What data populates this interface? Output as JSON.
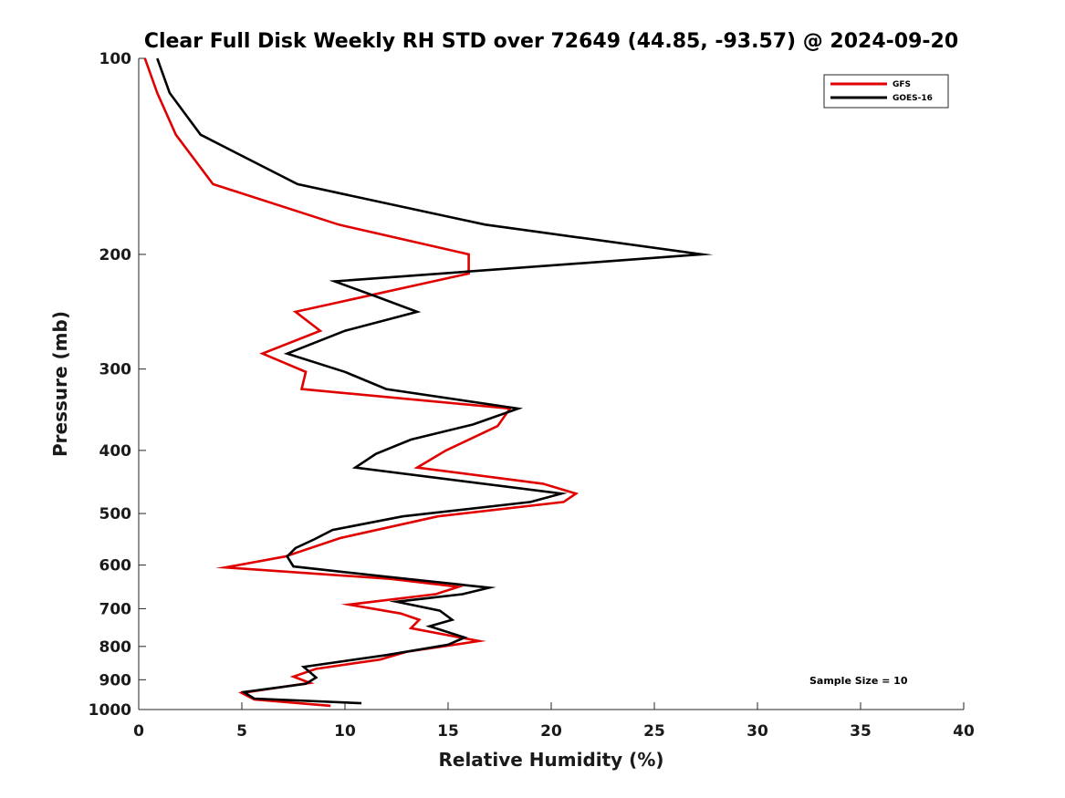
{
  "chart_data": {
    "type": "line",
    "title": "Clear Full Disk Weekly RH STD over 72649 (44.85, -93.57) @ 2024-09-20",
    "xlabel": "Relative Humidity (%)",
    "ylabel": "Pressure (mb)",
    "xlim": [
      0,
      40
    ],
    "ylim": [
      1000,
      100
    ],
    "yscale": "log-reversed",
    "x_ticks": [
      "0",
      "5",
      "10",
      "15",
      "20",
      "25",
      "30",
      "35",
      "40"
    ],
    "y_ticks": [
      {
        "value": 100,
        "label": "100"
      },
      {
        "value": 200,
        "label": "200"
      },
      {
        "value": 300,
        "label": "300"
      },
      {
        "value": 400,
        "label": "400"
      },
      {
        "value": 500,
        "label": "500"
      },
      {
        "value": 600,
        "label": "600"
      },
      {
        "value": 700,
        "label": "700"
      },
      {
        "value": 800,
        "label": "800"
      },
      {
        "value": 900,
        "label": "900"
      },
      {
        "value": 1000,
        "label": "1000"
      }
    ],
    "grid": false,
    "legend_position": "top-right",
    "annotation": "Sample Size = 10",
    "series": [
      {
        "name": "GFS",
        "color": "#e00000",
        "points": [
          {
            "x": 0.3,
            "p": 100
          },
          {
            "x": 0.9,
            "p": 113
          },
          {
            "x": 1.8,
            "p": 131
          },
          {
            "x": 3.6,
            "p": 156
          },
          {
            "x": 9.7,
            "p": 180
          },
          {
            "x": 16.0,
            "p": 200
          },
          {
            "x": 16.0,
            "p": 214
          },
          {
            "x": 7.6,
            "p": 245
          },
          {
            "x": 8.8,
            "p": 262
          },
          {
            "x": 6.0,
            "p": 284
          },
          {
            "x": 8.1,
            "p": 303
          },
          {
            "x": 7.9,
            "p": 322
          },
          {
            "x": 18.0,
            "p": 345
          },
          {
            "x": 17.4,
            "p": 367
          },
          {
            "x": 14.9,
            "p": 400
          },
          {
            "x": 13.5,
            "p": 425
          },
          {
            "x": 19.6,
            "p": 450
          },
          {
            "x": 21.2,
            "p": 466
          },
          {
            "x": 20.6,
            "p": 480
          },
          {
            "x": 14.5,
            "p": 505
          },
          {
            "x": 9.8,
            "p": 545
          },
          {
            "x": 7.1,
            "p": 582
          },
          {
            "x": 4.2,
            "p": 605
          },
          {
            "x": 12.2,
            "p": 630
          },
          {
            "x": 15.5,
            "p": 648
          },
          {
            "x": 14.4,
            "p": 665
          },
          {
            "x": 10.2,
            "p": 690
          },
          {
            "x": 12.7,
            "p": 712
          },
          {
            "x": 13.6,
            "p": 728
          },
          {
            "x": 13.2,
            "p": 750
          },
          {
            "x": 16.5,
            "p": 785
          },
          {
            "x": 13.0,
            "p": 815
          },
          {
            "x": 11.7,
            "p": 838
          },
          {
            "x": 8.6,
            "p": 866
          },
          {
            "x": 7.5,
            "p": 890
          },
          {
            "x": 8.3,
            "p": 910
          },
          {
            "x": 5.0,
            "p": 943
          },
          {
            "x": 5.6,
            "p": 965
          },
          {
            "x": 9.3,
            "p": 987
          }
        ]
      },
      {
        "name": "GOES-16",
        "color": "#000000",
        "points": [
          {
            "x": 0.9,
            "p": 100
          },
          {
            "x": 1.5,
            "p": 113
          },
          {
            "x": 3.0,
            "p": 131
          },
          {
            "x": 7.7,
            "p": 156
          },
          {
            "x": 16.8,
            "p": 180
          },
          {
            "x": 27.3,
            "p": 200
          },
          {
            "x": 9.5,
            "p": 220
          },
          {
            "x": 11.5,
            "p": 232
          },
          {
            "x": 13.5,
            "p": 245
          },
          {
            "x": 10.0,
            "p": 262
          },
          {
            "x": 7.2,
            "p": 284
          },
          {
            "x": 10.0,
            "p": 303
          },
          {
            "x": 12.0,
            "p": 322
          },
          {
            "x": 18.4,
            "p": 345
          },
          {
            "x": 16.2,
            "p": 365
          },
          {
            "x": 13.2,
            "p": 385
          },
          {
            "x": 11.5,
            "p": 405
          },
          {
            "x": 10.5,
            "p": 425
          },
          {
            "x": 20.5,
            "p": 466
          },
          {
            "x": 19.0,
            "p": 480
          },
          {
            "x": 12.8,
            "p": 505
          },
          {
            "x": 9.4,
            "p": 530
          },
          {
            "x": 8.5,
            "p": 548
          },
          {
            "x": 7.6,
            "p": 565
          },
          {
            "x": 7.2,
            "p": 582
          },
          {
            "x": 7.5,
            "p": 603
          },
          {
            "x": 12.0,
            "p": 625
          },
          {
            "x": 17.0,
            "p": 650
          },
          {
            "x": 15.7,
            "p": 665
          },
          {
            "x": 12.5,
            "p": 683
          },
          {
            "x": 14.6,
            "p": 705
          },
          {
            "x": 15.2,
            "p": 728
          },
          {
            "x": 14.1,
            "p": 745
          },
          {
            "x": 15.8,
            "p": 775
          },
          {
            "x": 15.0,
            "p": 795
          },
          {
            "x": 12.0,
            "p": 825
          },
          {
            "x": 8.0,
            "p": 860
          },
          {
            "x": 8.6,
            "p": 893
          },
          {
            "x": 8.1,
            "p": 913
          },
          {
            "x": 5.1,
            "p": 940
          },
          {
            "x": 5.6,
            "p": 962
          },
          {
            "x": 10.8,
            "p": 978
          }
        ]
      }
    ]
  }
}
